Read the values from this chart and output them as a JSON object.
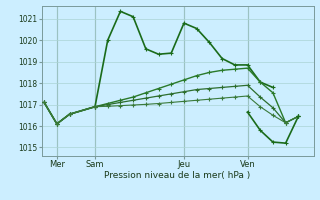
{
  "title": "Pression niveau de la mer( hPa )",
  "ylabel_values": [
    1015,
    1016,
    1017,
    1018,
    1019,
    1020,
    1021
  ],
  "ylim": [
    1014.6,
    1021.6
  ],
  "background_color": "#cceeff",
  "grid_color": "#aad4d4",
  "x_tick_labels": [
    "Mer",
    "Sam",
    "Jeu",
    "Ven"
  ],
  "x_tick_positions": [
    1,
    4,
    11,
    16
  ],
  "xlim": [
    -0.2,
    21.2
  ],
  "series": [
    {
      "x": [
        0,
        1,
        2,
        4,
        5,
        6,
        7,
        8,
        9,
        10,
        11,
        12,
        13,
        14,
        15,
        16,
        17,
        18
      ],
      "y": [
        1017.1,
        1016.1,
        1016.55,
        1016.9,
        1020.0,
        1021.35,
        1021.1,
        1019.6,
        1019.35,
        1019.4,
        1020.8,
        1020.55,
        1019.9,
        1019.15,
        1018.85,
        1018.85,
        1018.05,
        1017.8
      ],
      "color": "#1a6b1a",
      "lw": 1.2,
      "marker": "+"
    },
    {
      "x": [
        0,
        1,
        2,
        4,
        5,
        6,
        7,
        8,
        9,
        10,
        11,
        12,
        13,
        14,
        15,
        16,
        17,
        18,
        19,
        20
      ],
      "y": [
        1017.1,
        1016.1,
        1016.55,
        1016.9,
        1017.05,
        1017.2,
        1017.35,
        1017.55,
        1017.75,
        1017.95,
        1018.15,
        1018.35,
        1018.5,
        1018.6,
        1018.65,
        1018.7,
        1018.05,
        1017.55,
        1016.15,
        1016.45
      ],
      "color": "#2a7a2a",
      "lw": 1.0,
      "marker": "+"
    },
    {
      "x": [
        0,
        1,
        2,
        4,
        5,
        6,
        7,
        8,
        9,
        10,
        11,
        12,
        13,
        14,
        15,
        16,
        17,
        18,
        19,
        20
      ],
      "y": [
        1017.1,
        1016.1,
        1016.55,
        1016.9,
        1017.0,
        1017.1,
        1017.2,
        1017.3,
        1017.4,
        1017.5,
        1017.6,
        1017.7,
        1017.75,
        1017.8,
        1017.85,
        1017.9,
        1017.35,
        1016.85,
        1016.15,
        1016.45
      ],
      "color": "#2d6e2d",
      "lw": 0.9,
      "marker": "+"
    },
    {
      "x": [
        0,
        1,
        2,
        4,
        5,
        6,
        7,
        8,
        9,
        10,
        11,
        12,
        13,
        14,
        15,
        16,
        17,
        18,
        19,
        20
      ],
      "y": [
        1017.1,
        1016.1,
        1016.55,
        1016.9,
        1016.92,
        1016.95,
        1016.98,
        1017.01,
        1017.05,
        1017.1,
        1017.15,
        1017.2,
        1017.25,
        1017.3,
        1017.35,
        1017.4,
        1016.9,
        1016.5,
        1016.15,
        1016.45
      ],
      "color": "#3a7a3a",
      "lw": 0.8,
      "marker": "+"
    },
    {
      "x": [
        16,
        17,
        18,
        19,
        20
      ],
      "y": [
        1016.65,
        1015.8,
        1015.25,
        1015.2,
        1016.45
      ],
      "color": "#1a6b1a",
      "lw": 1.2,
      "marker": "+"
    }
  ],
  "vline_positions": [
    1,
    4,
    11,
    16
  ],
  "vline_color": "#7a9a9a",
  "marker_size": 3,
  "marker_lw": 0.8
}
